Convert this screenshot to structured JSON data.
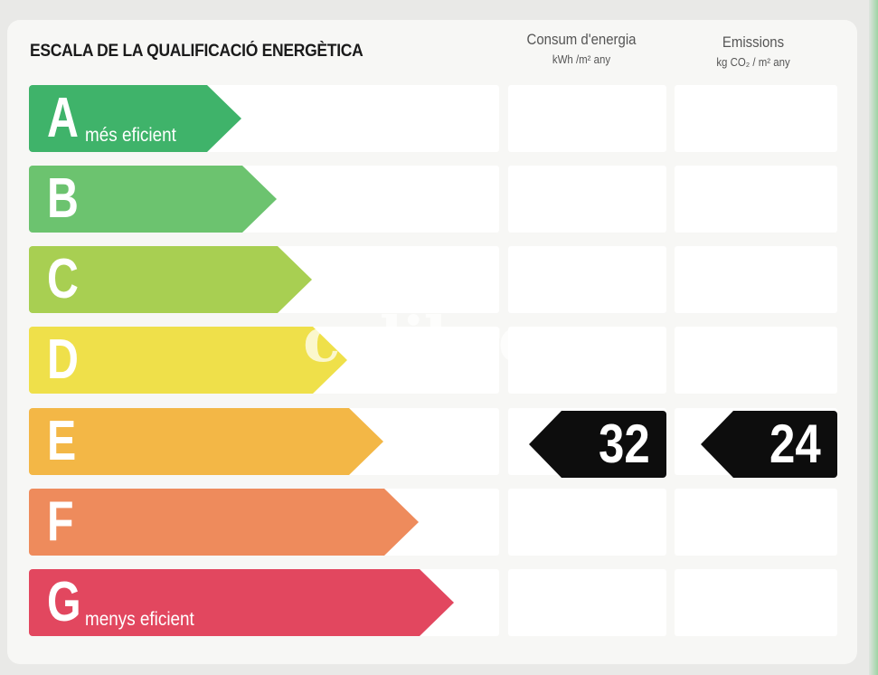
{
  "title": "ESCALA DE LA QUALIFICACIÓ ENERGÈTICA",
  "columns": {
    "energy": {
      "heading": "Consum d'energia",
      "unit": "kWh /m² any"
    },
    "emissions": {
      "heading": "Emissions",
      "unit": "kg CO₂ / m² any"
    }
  },
  "bands": [
    {
      "letter": "A",
      "caption": "més eficient",
      "color": "#3fb36a"
    },
    {
      "letter": "B",
      "caption": "",
      "color": "#6cc36f"
    },
    {
      "letter": "C",
      "caption": "",
      "color": "#a8cf52"
    },
    {
      "letter": "D",
      "caption": "",
      "color": "#efe04a"
    },
    {
      "letter": "E",
      "caption": "",
      "color": "#f3b746"
    },
    {
      "letter": "F",
      "caption": "",
      "color": "#ee8b5c"
    },
    {
      "letter": "G",
      "caption": "menys eficient",
      "color": "#e2475f"
    }
  ],
  "rating": {
    "band": "E",
    "energy_value": "32",
    "emissions_value": "24"
  },
  "watermark": "colibree"
}
